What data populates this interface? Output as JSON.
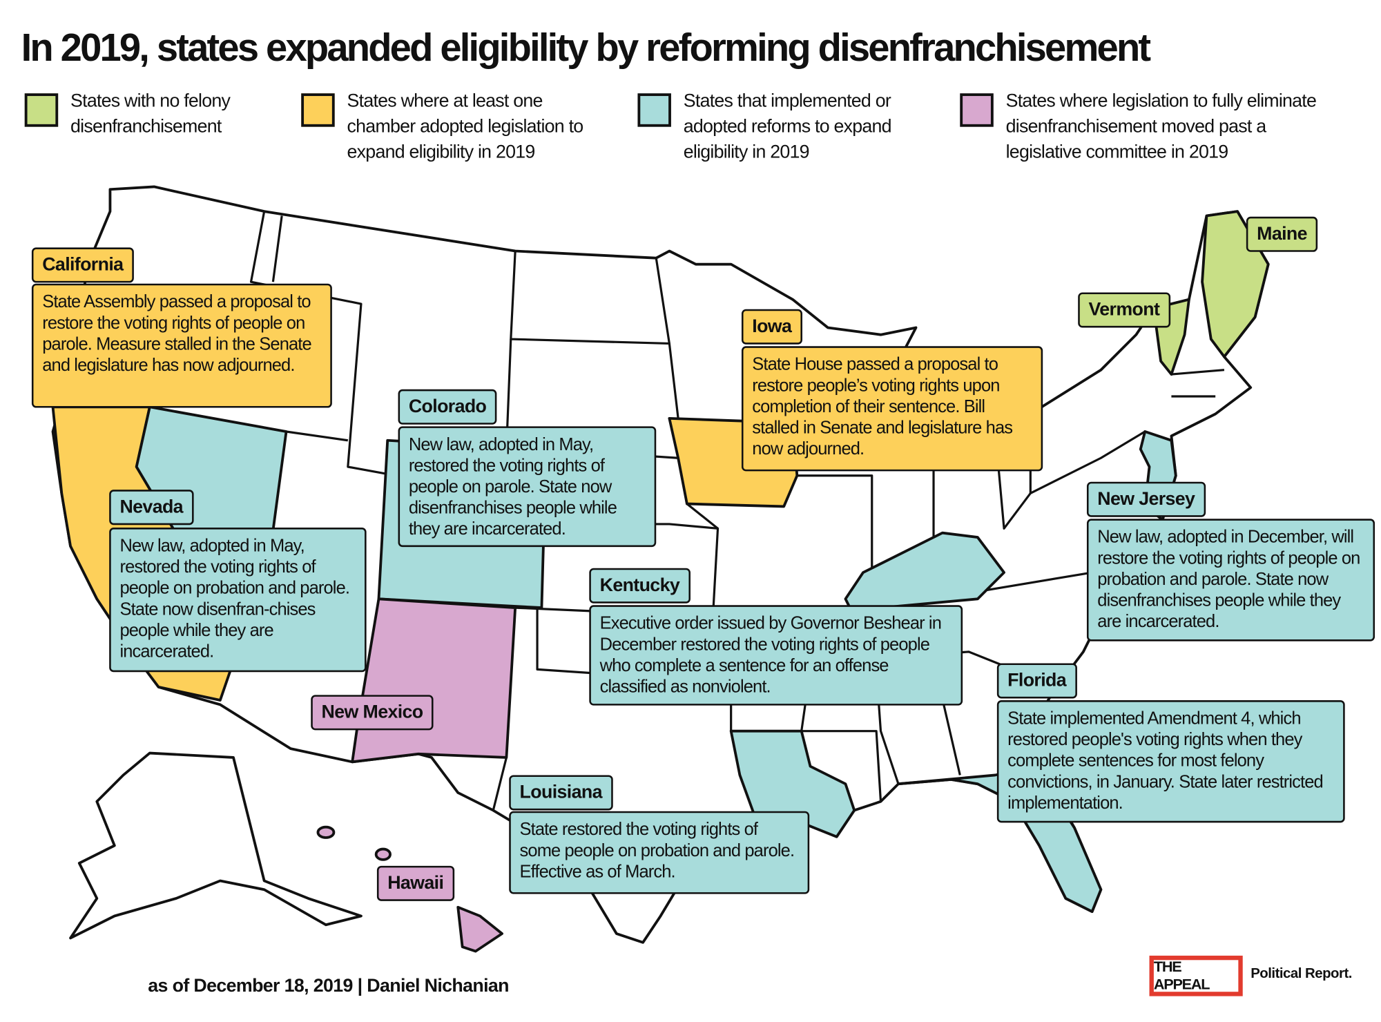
{
  "title": "In 2019, states expanded eligibility by reforming disenfranchisement",
  "legend": [
    {
      "label": "States with no felony disenfranchisement",
      "color": "#c8df86"
    },
    {
      "label": "States where at least one chamber adopted legislation to expand eligibility in 2019",
      "color": "#fdd05a"
    },
    {
      "label": "States that implemented or adopted reforms to expand eligibility in 2019",
      "color": "#a8dcdb"
    },
    {
      "label": "States where legislation to fully eliminate disenfranchisement moved past a legislative committee in 2019",
      "color": "#d8a8cf"
    }
  ],
  "states": {
    "california": {
      "name": "California",
      "note": "State Assembly passed a proposal to restore the voting rights of people on parole. Measure stalled in the Senate and legislature has now adjourned."
    },
    "colorado": {
      "name": "Colorado",
      "note": "New law, adopted in May, restored the voting rights of people on parole. State now disenfranchises people while they are incarcerated."
    },
    "nevada": {
      "name": "Nevada",
      "note": "New law, adopted in May, restored the voting rights of people on probation and parole. State now disenfran-chises people while they are incarcerated."
    },
    "iowa": {
      "name": "Iowa",
      "note": "State House passed a proposal to restore people’s voting rights upon completion of their sentence. Bill stalled in Senate and legislature has now adjourned."
    },
    "vermont": {
      "name": "Vermont"
    },
    "maine": {
      "name": "Maine"
    },
    "new_jersey": {
      "name": "New Jersey",
      "note": "New law, adopted in December, will restore the voting rights of people on probation and parole. State now disenfranchises people while they are incarcerated."
    },
    "kentucky": {
      "name": "Kentucky",
      "note": "Executive order issued by Governor Beshear in December restored the voting rights of people who complete a sentence for an offense classified as nonviolent."
    },
    "florida": {
      "name": "Florida",
      "note": "State implemented Amendment 4, which restored people's voting rights when they complete sentences for most felony convictions, in January. State later restricted implementation."
    },
    "new_mexico": {
      "name": "New Mexico"
    },
    "louisiana": {
      "name": "Louisiana",
      "note": "State restored the voting rights of some people on probation and parole. Effective as of March."
    },
    "hawaii": {
      "name": "Hawaii"
    }
  },
  "footer": "as of December 18, 2019 | Daniel Nichanian",
  "logo": {
    "name": "THE APPEAL",
    "sub": "Political Report."
  }
}
